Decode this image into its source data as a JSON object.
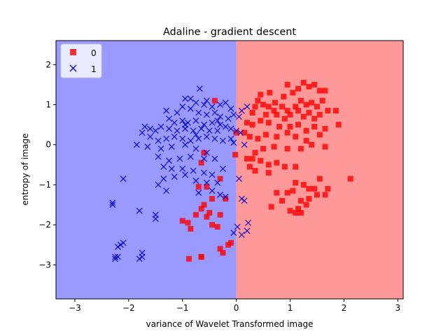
{
  "chart_data": {
    "type": "scatter",
    "title": "Adaline - gradient descent",
    "xlabel": "variance of Wavelet Transformed image",
    "ylabel": "entropy of image",
    "xlim": [
      -3.35,
      3.1
    ],
    "ylim": [
      -3.85,
      2.6
    ],
    "xticks": [
      -3,
      -2,
      -1,
      0,
      1,
      2,
      3
    ],
    "yticks": [
      -3,
      -2,
      -1,
      0,
      1,
      2
    ],
    "xtick_labels": [
      "−3",
      "−2",
      "−1",
      "0",
      "1",
      "2",
      "3"
    ],
    "ytick_labels": [
      "−3",
      "−2",
      "−1",
      "0",
      "1",
      "2"
    ],
    "grid": false,
    "legend_position": "upper-left",
    "decision_boundary_x": 0.0,
    "regions": [
      {
        "label": "0",
        "color": "#ff9999",
        "side": "right"
      },
      {
        "label": "1",
        "color": "#9999ff",
        "side": "left"
      }
    ],
    "series": [
      {
        "name": "0",
        "marker": "square",
        "color": "#ff0000",
        "points": [
          [
            0.45,
            1.25
          ],
          [
            0.62,
            1.3
          ],
          [
            0.72,
            1.05
          ],
          [
            0.88,
            1.2
          ],
          [
            0.95,
            1.5
          ],
          [
            1.05,
            1.3
          ],
          [
            1.15,
            1.4
          ],
          [
            1.25,
            1.55
          ],
          [
            1.35,
            1.45
          ],
          [
            1.45,
            1.5
          ],
          [
            1.55,
            1.35
          ],
          [
            1.65,
            1.35
          ],
          [
            1.2,
            1.1
          ],
          [
            1.3,
            1.0
          ],
          [
            1.4,
            1.05
          ],
          [
            1.5,
            0.95
          ],
          [
            1.6,
            1.1
          ],
          [
            1.1,
            0.95
          ],
          [
            0.95,
            0.85
          ],
          [
            0.85,
            0.95
          ],
          [
            0.7,
            0.85
          ],
          [
            0.6,
            0.95
          ],
          [
            0.5,
            1.0
          ],
          [
            0.4,
            1.1
          ],
          [
            0.35,
            0.95
          ],
          [
            0.3,
            0.8
          ],
          [
            0.55,
            0.75
          ],
          [
            0.75,
            0.75
          ],
          [
            0.9,
            0.65
          ],
          [
            1.0,
            0.75
          ],
          [
            1.15,
            0.85
          ],
          [
            1.25,
            0.7
          ],
          [
            1.35,
            0.8
          ],
          [
            1.45,
            0.65
          ],
          [
            1.55,
            0.75
          ],
          [
            1.7,
            0.85
          ],
          [
            1.85,
            0.85
          ],
          [
            1.9,
            0.5
          ],
          [
            1.65,
            0.4
          ],
          [
            1.45,
            0.45
          ],
          [
            1.3,
            0.35
          ],
          [
            1.15,
            0.5
          ],
          [
            1.0,
            0.45
          ],
          [
            0.8,
            0.45
          ],
          [
            0.6,
            0.55
          ],
          [
            0.45,
            0.6
          ],
          [
            0.3,
            0.5
          ],
          [
            0.2,
            0.55
          ],
          [
            0.15,
            0.3
          ],
          [
            0.25,
            0.2
          ],
          [
            0.4,
            0.15
          ],
          [
            0.55,
            0.25
          ],
          [
            0.75,
            0.2
          ],
          [
            0.95,
            0.3
          ],
          [
            1.1,
            0.2
          ],
          [
            1.3,
            0.1
          ],
          [
            1.55,
            0.25
          ],
          [
            1.65,
            -0.05
          ],
          [
            1.4,
            0.0
          ],
          [
            1.2,
            -0.1
          ],
          [
            0.95,
            -0.1
          ],
          [
            0.7,
            -0.05
          ],
          [
            0.5,
            -0.1
          ],
          [
            0.35,
            -0.2
          ],
          [
            0.3,
            -0.35
          ],
          [
            0.45,
            -0.4
          ],
          [
            0.6,
            -0.5
          ],
          [
            0.75,
            -0.45
          ],
          [
            0.9,
            -0.55
          ],
          [
            1.1,
            -0.55
          ],
          [
            0.25,
            -0.55
          ],
          [
            0.35,
            -0.65
          ],
          [
            0.6,
            -0.7
          ],
          [
            1.1,
            -0.95
          ],
          [
            1.05,
            -1.15
          ],
          [
            0.95,
            -1.2
          ],
          [
            1.25,
            -1.0
          ],
          [
            1.35,
            -1.1
          ],
          [
            1.45,
            -1.1
          ],
          [
            1.5,
            -1.25
          ],
          [
            1.35,
            -1.35
          ],
          [
            1.2,
            -1.4
          ],
          [
            1.3,
            -1.5
          ],
          [
            1.15,
            -1.6
          ],
          [
            1.1,
            -1.7
          ],
          [
            1.2,
            -1.7
          ],
          [
            1.0,
            -1.65
          ],
          [
            0.85,
            -1.4
          ],
          [
            0.65,
            -1.55
          ],
          [
            0.75,
            -1.2
          ],
          [
            1.55,
            -0.85
          ],
          [
            1.65,
            -1.25
          ],
          [
            1.7,
            -1.1
          ],
          [
            2.12,
            -0.85
          ],
          [
            0.2,
            -0.35
          ],
          [
            -0.6,
            -0.2
          ],
          [
            -0.65,
            -0.45
          ],
          [
            -0.3,
            -0.85
          ],
          [
            -0.55,
            -1.05
          ],
          [
            -0.7,
            -1.05
          ],
          [
            -0.6,
            -1.5
          ],
          [
            -0.65,
            -1.6
          ],
          [
            -0.5,
            -1.7
          ],
          [
            -0.55,
            -1.8
          ],
          [
            -0.75,
            -1.75
          ],
          [
            -0.9,
            -1.95
          ],
          [
            -1.0,
            -1.9
          ],
          [
            -0.85,
            -2.1
          ],
          [
            -0.45,
            -2.0
          ],
          [
            -0.35,
            -2.05
          ],
          [
            -0.3,
            -1.75
          ],
          [
            -0.2,
            -1.35
          ],
          [
            -0.45,
            -1.35
          ],
          [
            -0.1,
            -2.45
          ],
          [
            -0.15,
            -2.5
          ],
          [
            -0.3,
            -2.6
          ],
          [
            -0.65,
            -2.8
          ],
          [
            -0.65,
            -2.8
          ],
          [
            -0.88,
            -2.85
          ],
          [
            -0.25,
            -2.7
          ],
          [
            0.0,
            0.3
          ],
          [
            -0.02,
            -0.25
          ],
          [
            -0.4,
            1.1
          ]
        ]
      },
      {
        "name": "1",
        "marker": "x",
        "color": "#0000cc",
        "points": [
          [
            -0.68,
            1.4
          ],
          [
            -0.85,
            1.15
          ],
          [
            -0.95,
            1.15
          ],
          [
            -0.75,
            1.05
          ],
          [
            -0.6,
            1.0
          ],
          [
            -0.55,
            1.1
          ],
          [
            -0.45,
            0.95
          ],
          [
            -0.3,
            1.0
          ],
          [
            -0.2,
            1.05
          ],
          [
            -0.1,
            0.9
          ],
          [
            0.1,
            0.85
          ],
          [
            0.2,
            0.95
          ],
          [
            0.05,
            0.7
          ],
          [
            -0.05,
            0.75
          ],
          [
            -0.15,
            0.65
          ],
          [
            -0.3,
            0.7
          ],
          [
            -0.4,
            0.8
          ],
          [
            -0.55,
            0.75
          ],
          [
            -0.7,
            0.8
          ],
          [
            -0.85,
            0.9
          ],
          [
            -1.0,
            0.95
          ],
          [
            -1.1,
            0.8
          ],
          [
            -1.3,
            0.85
          ],
          [
            -1.25,
            0.65
          ],
          [
            -1.15,
            0.55
          ],
          [
            -1.0,
            0.6
          ],
          [
            -0.9,
            0.55
          ],
          [
            -0.75,
            0.6
          ],
          [
            -0.6,
            0.5
          ],
          [
            -0.45,
            0.55
          ],
          [
            -0.3,
            0.5
          ],
          [
            -0.2,
            0.45
          ],
          [
            -0.1,
            0.4
          ],
          [
            0.0,
            0.35
          ],
          [
            0.08,
            0.3
          ],
          [
            -0.35,
            0.35
          ],
          [
            -0.5,
            0.35
          ],
          [
            -0.65,
            0.4
          ],
          [
            -0.8,
            0.35
          ],
          [
            -0.95,
            0.4
          ],
          [
            -1.1,
            0.35
          ],
          [
            -1.25,
            0.4
          ],
          [
            -1.4,
            0.45
          ],
          [
            -1.5,
            0.35
          ],
          [
            -1.6,
            0.4
          ],
          [
            -1.7,
            0.45
          ],
          [
            -1.75,
            0.3
          ],
          [
            -1.6,
            0.2
          ],
          [
            -1.45,
            0.1
          ],
          [
            -1.3,
            0.15
          ],
          [
            -1.15,
            0.2
          ],
          [
            -1.0,
            0.15
          ],
          [
            -0.85,
            0.1
          ],
          [
            -0.7,
            0.15
          ],
          [
            -0.55,
            0.2
          ],
          [
            -0.4,
            0.15
          ],
          [
            -0.25,
            0.1
          ],
          [
            -0.1,
            0.15
          ],
          [
            -0.05,
            0.05
          ],
          [
            0.15,
            0.0
          ],
          [
            -1.85,
            0.0
          ],
          [
            -1.65,
            -0.05
          ],
          [
            -1.4,
            -0.1
          ],
          [
            -1.2,
            -0.05
          ],
          [
            -0.95,
            0.0
          ],
          [
            -0.75,
            -0.1
          ],
          [
            -0.55,
            -0.2
          ],
          [
            -0.4,
            -0.35
          ],
          [
            -0.6,
            -0.35
          ],
          [
            -0.85,
            -0.3
          ],
          [
            -1.05,
            -0.35
          ],
          [
            -1.25,
            -0.4
          ],
          [
            -1.45,
            -0.3
          ],
          [
            -1.35,
            -0.55
          ],
          [
            -1.2,
            -0.6
          ],
          [
            -1.0,
            -0.6
          ],
          [
            -0.8,
            -0.65
          ],
          [
            -0.6,
            -0.7
          ],
          [
            -0.45,
            -0.75
          ],
          [
            -0.25,
            -0.6
          ],
          [
            -0.35,
            -0.95
          ],
          [
            -0.55,
            -0.95
          ],
          [
            -0.75,
            -0.9
          ],
          [
            -0.95,
            -0.75
          ],
          [
            -1.15,
            -0.8
          ],
          [
            -1.35,
            -0.85
          ],
          [
            -1.45,
            -1.0
          ],
          [
            -1.3,
            -1.15
          ],
          [
            -2.1,
            -0.85
          ],
          [
            -0.7,
            -1.2
          ],
          [
            -0.45,
            -1.15
          ],
          [
            -0.3,
            -1.25
          ],
          [
            -0.2,
            -1.3
          ],
          [
            0.1,
            -1.35
          ],
          [
            0.15,
            -1.4
          ],
          [
            0.22,
            -1.95
          ],
          [
            0.02,
            -2.05
          ],
          [
            -0.05,
            -2.2
          ],
          [
            0.1,
            -2.25
          ],
          [
            0.2,
            -2.15
          ],
          [
            -2.3,
            -1.45
          ],
          [
            -2.3,
            -1.5
          ],
          [
            -1.8,
            -1.65
          ],
          [
            -1.5,
            -1.75
          ],
          [
            -1.5,
            -1.85
          ],
          [
            -2.1,
            -2.45
          ],
          [
            -2.15,
            -2.5
          ],
          [
            -2.2,
            -2.55
          ],
          [
            -2.25,
            -2.8
          ],
          [
            -2.25,
            -2.85
          ],
          [
            -2.2,
            -2.8
          ],
          [
            -1.75,
            -2.7
          ],
          [
            -1.75,
            -2.8
          ],
          [
            -1.8,
            -2.85
          ],
          [
            -0.95,
            0.5
          ],
          [
            -0.75,
            0.25
          ],
          [
            -0.35,
            0.6
          ],
          [
            0.05,
            -0.85
          ]
        ]
      }
    ]
  }
}
